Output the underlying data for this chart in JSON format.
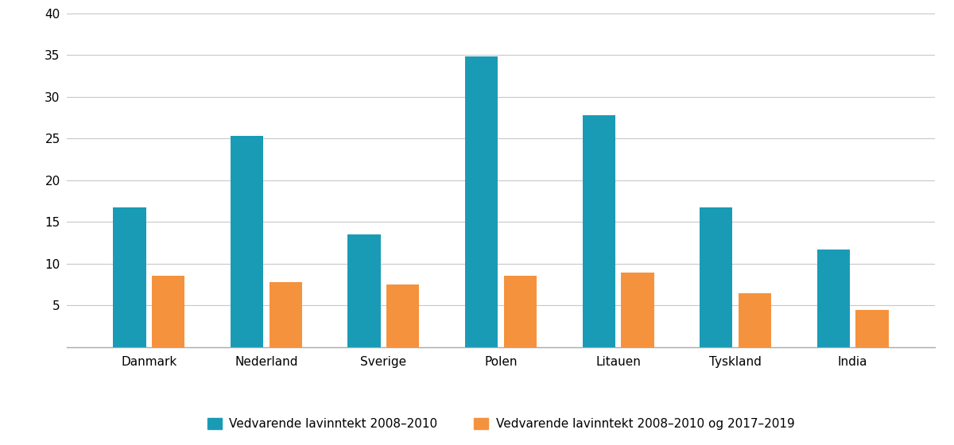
{
  "categories": [
    "Danmark",
    "Nederland",
    "Sverige",
    "Polen",
    "Litauen",
    "Tyskland",
    "India"
  ],
  "series1_values": [
    16.7,
    25.3,
    13.5,
    34.8,
    27.8,
    16.7,
    11.7
  ],
  "series2_values": [
    8.6,
    7.8,
    7.5,
    8.6,
    8.9,
    6.5,
    4.5
  ],
  "series1_color": "#1a9bb5",
  "series2_color": "#f5923e",
  "series1_label": "Vedvarende lavinntekt 2008–2010",
  "series2_label": "Vedvarende lavinntekt 2008–2010 og 2017–2019",
  "ylim": [
    0,
    40
  ],
  "yticks": [
    0,
    5,
    10,
    15,
    20,
    25,
    30,
    35,
    40
  ],
  "ytick_labels": [
    "",
    "5",
    "10",
    "15",
    "20",
    "25",
    "30",
    "35",
    "40"
  ],
  "background_color": "#ffffff",
  "bar_width": 0.28,
  "bar_gap": 0.05,
  "grid_color": "#c8c8c8",
  "spine_color": "#aaaaaa",
  "tick_fontsize": 11,
  "legend_fontsize": 11
}
